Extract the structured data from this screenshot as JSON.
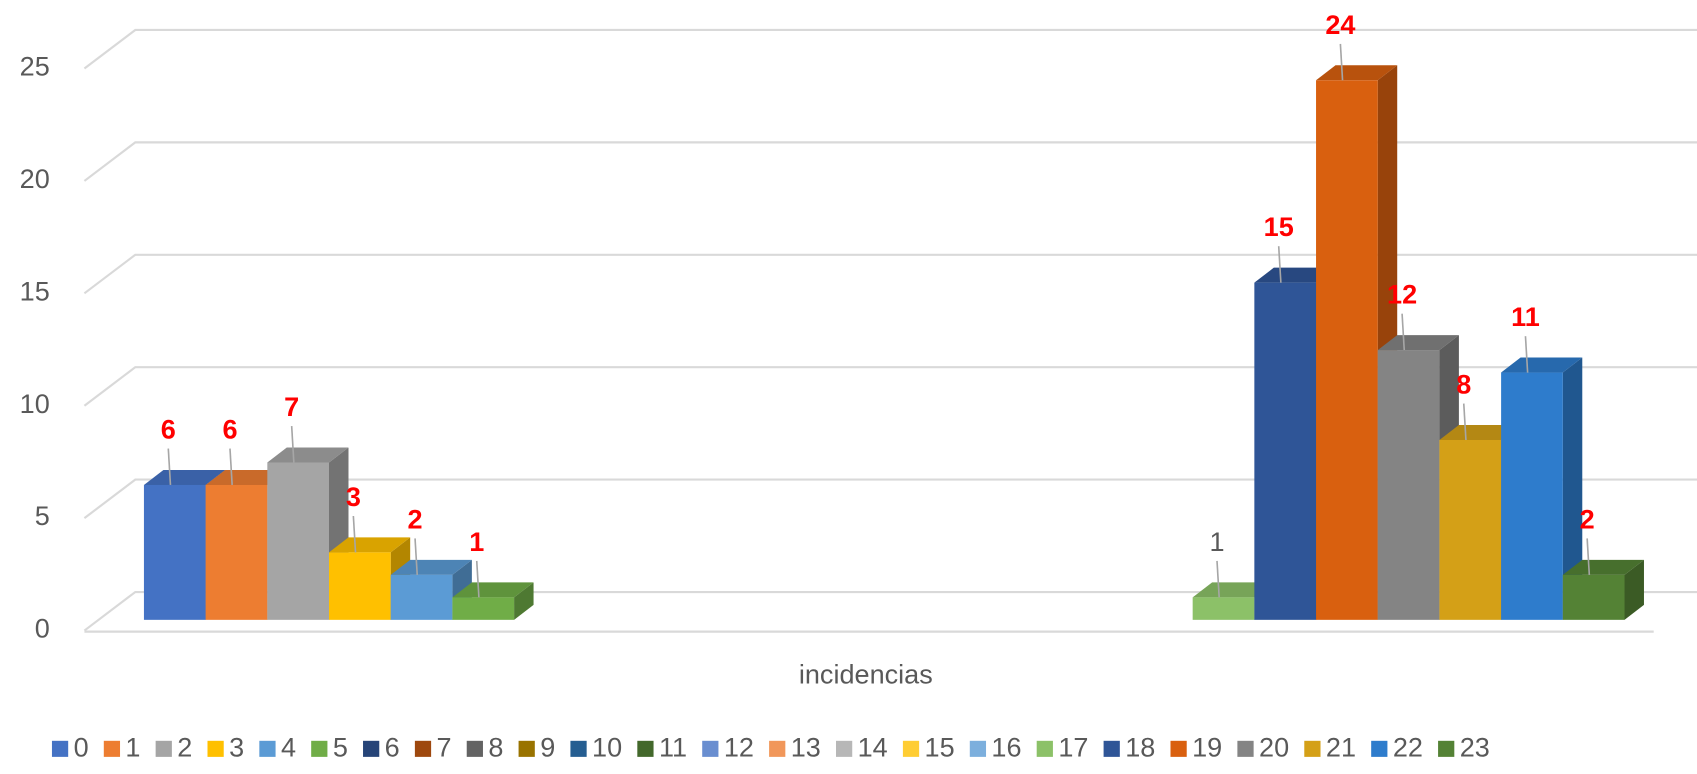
{
  "chart_data": {
    "type": "bar3d",
    "x_label": "incidencias",
    "categories": [
      "incidencias"
    ],
    "ylim": [
      0,
      25
    ],
    "yticks": [
      0,
      5,
      10,
      15,
      20,
      25
    ],
    "grid": true,
    "legend": "bottom",
    "series": [
      {
        "name": "0",
        "color": "#4472c4",
        "values": [
          6
        ],
        "label_color": "#ff0000"
      },
      {
        "name": "1",
        "color": "#ed7d31",
        "values": [
          6
        ],
        "label_color": "#ff0000"
      },
      {
        "name": "2",
        "color": "#a5a5a5",
        "values": [
          7
        ],
        "label_color": "#ff0000"
      },
      {
        "name": "3",
        "color": "#ffc000",
        "values": [
          3
        ],
        "label_color": "#ff0000"
      },
      {
        "name": "4",
        "color": "#5b9bd5",
        "values": [
          2
        ],
        "label_color": "#ff0000"
      },
      {
        "name": "5",
        "color": "#70ad47",
        "values": [
          1
        ],
        "label_color": "#ff0000"
      },
      {
        "name": "6",
        "color": "#264478",
        "values": [
          null
        ]
      },
      {
        "name": "7",
        "color": "#9e480e",
        "values": [
          null
        ]
      },
      {
        "name": "8",
        "color": "#636363",
        "values": [
          null
        ]
      },
      {
        "name": "9",
        "color": "#997300",
        "values": [
          null
        ]
      },
      {
        "name": "10",
        "color": "#255e91",
        "values": [
          null
        ]
      },
      {
        "name": "11",
        "color": "#43682b",
        "values": [
          null
        ]
      },
      {
        "name": "12",
        "color": "#698ed0",
        "values": [
          null
        ]
      },
      {
        "name": "13",
        "color": "#f1975a",
        "values": [
          null
        ]
      },
      {
        "name": "14",
        "color": "#b7b7b7",
        "values": [
          null
        ]
      },
      {
        "name": "15",
        "color": "#ffcd33",
        "values": [
          null
        ]
      },
      {
        "name": "16",
        "color": "#7cafdd",
        "values": [
          null
        ]
      },
      {
        "name": "17",
        "color": "#8cc168",
        "values": [
          1
        ],
        "label_color": "#595959"
      },
      {
        "name": "18",
        "color": "#2f5597",
        "values": [
          15
        ],
        "label_color": "#ff0000"
      },
      {
        "name": "19",
        "color": "#d9600f",
        "values": [
          24
        ],
        "label_color": "#ff0000"
      },
      {
        "name": "20",
        "color": "#848484",
        "values": [
          12
        ],
        "label_color": "#ff0000"
      },
      {
        "name": "21",
        "color": "#d4a017",
        "values": [
          8
        ],
        "label_color": "#ff0000"
      },
      {
        "name": "22",
        "color": "#2e7ccc",
        "values": [
          11
        ],
        "label_color": "#ff0000"
      },
      {
        "name": "23",
        "color": "#548235",
        "values": [
          2
        ],
        "label_color": "#ff0000"
      }
    ]
  }
}
